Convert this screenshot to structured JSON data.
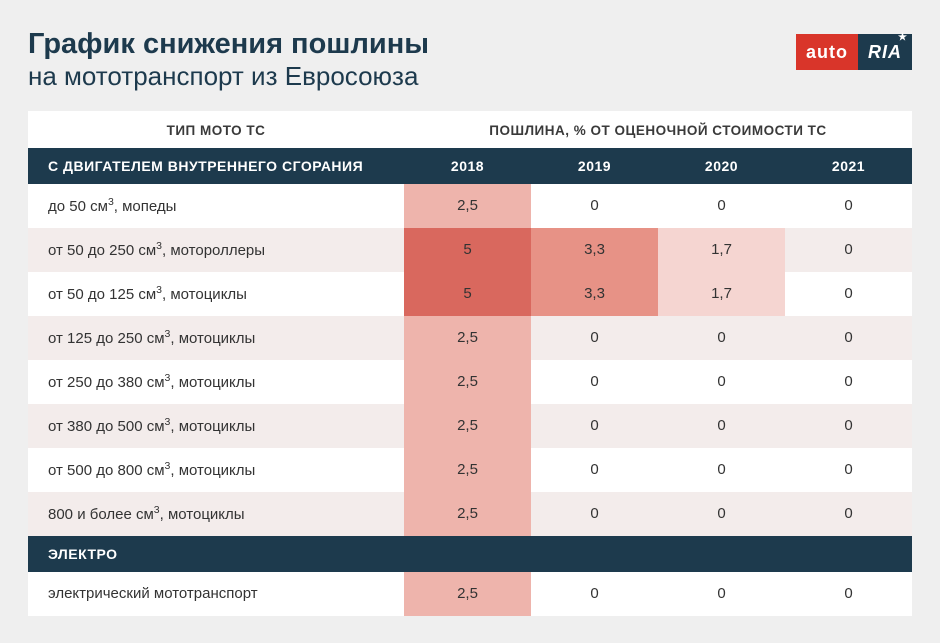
{
  "header": {
    "title": "График снижения пошлины",
    "subtitle": "на мототранспорт из Евросоюза",
    "logo_left": "auto",
    "logo_right": "RIA"
  },
  "table": {
    "col_label_type": "ТИП МОТО ТС",
    "col_label_duty": "ПОШЛИНА, % ОТ ОЦЕНОЧНОЙ СТОИМОСТИ ТС",
    "years": [
      "2018",
      "2019",
      "2020",
      "2021"
    ],
    "heat_colors": {
      "5": "#d9685e",
      "3.3": "#e79286",
      "2.5": "#eeb4ac",
      "1.7": "#f5d5d1",
      "0_even": "#ffffff",
      "0_odd": "#f3eceb"
    },
    "sections": [
      {
        "label": "С ДВИГАТЕЛЕМ ВНУТРЕННЕГО СГОРАНИЯ",
        "show_years_in_header": true,
        "rows": [
          {
            "type_html": "до 50 см<sup>3</sup>, мопеды",
            "values": [
              "2,5",
              "0",
              "0",
              "0"
            ],
            "heat": [
              "2.5",
              "0",
              "0",
              "0"
            ]
          },
          {
            "type_html": "от 50 до 250 см<sup>3</sup>, мотороллеры",
            "values": [
              "5",
              "3,3",
              "1,7",
              "0"
            ],
            "heat": [
              "5",
              "3.3",
              "1.7",
              "0"
            ]
          },
          {
            "type_html": "от 50 до 125 см<sup>3</sup>, мотоциклы",
            "values": [
              "5",
              "3,3",
              "1,7",
              "0"
            ],
            "heat": [
              "5",
              "3.3",
              "1.7",
              "0"
            ]
          },
          {
            "type_html": "от 125 до 250 см<sup>3</sup>, мотоциклы",
            "values": [
              "2,5",
              "0",
              "0",
              "0"
            ],
            "heat": [
              "2.5",
              "0",
              "0",
              "0"
            ]
          },
          {
            "type_html": "от 250 до 380 см<sup>3</sup>, мотоциклы",
            "values": [
              "2,5",
              "0",
              "0",
              "0"
            ],
            "heat": [
              "2.5",
              "0",
              "0",
              "0"
            ]
          },
          {
            "type_html": "от 380 до 500 см<sup>3</sup>, мотоциклы",
            "values": [
              "2,5",
              "0",
              "0",
              "0"
            ],
            "heat": [
              "2.5",
              "0",
              "0",
              "0"
            ]
          },
          {
            "type_html": "от 500 до 800 см<sup>3</sup>, мотоциклы",
            "values": [
              "2,5",
              "0",
              "0",
              "0"
            ],
            "heat": [
              "2.5",
              "0",
              "0",
              "0"
            ]
          },
          {
            "type_html": "800 и более см<sup>3</sup>, мотоциклы",
            "values": [
              "2,5",
              "0",
              "0",
              "0"
            ],
            "heat": [
              "2.5",
              "0",
              "0",
              "0"
            ]
          }
        ]
      },
      {
        "label": "ЭЛЕКТРО",
        "show_years_in_header": false,
        "rows": [
          {
            "type_html": "электрический мототранспорт",
            "values": [
              "2,5",
              "0",
              "0",
              "0"
            ],
            "heat": [
              "2.5",
              "0",
              "0",
              "0"
            ]
          }
        ]
      }
    ]
  }
}
